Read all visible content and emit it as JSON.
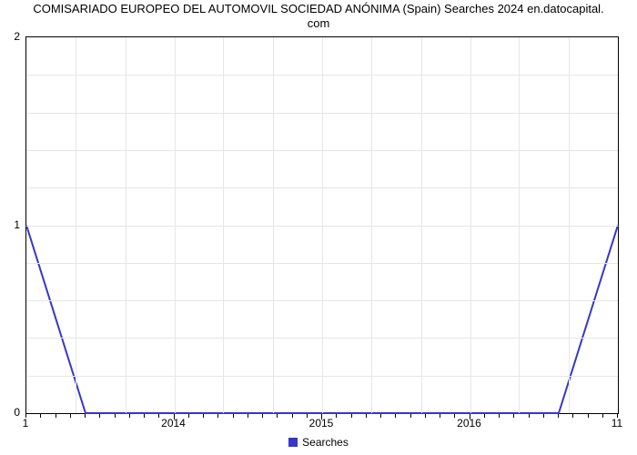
{
  "chart": {
    "type": "line",
    "title_line1": "COMISARIADO EUROPEO DEL AUTOMOVIL SOCIEDAD ANÓNIMA (Spain) Searches 2024 en.datocapital.",
    "title_line2": "com",
    "title_fontsize": 13,
    "title_color": "#000000",
    "background_color": "#ffffff",
    "plot_border_color": "#000000",
    "grid_color": "#e6e6e6",
    "y_axis": {
      "lim": [
        0,
        2
      ],
      "major_ticks": [
        0,
        1,
        2
      ],
      "label_fontsize": 12
    },
    "x_axis": {
      "domain_index": [
        1,
        11
      ],
      "corner_left_label": "1",
      "corner_right_label": "11",
      "major_tick_labels": [
        "2014",
        "2015",
        "2016"
      ],
      "major_tick_positions": [
        0.25,
        0.5,
        0.75
      ],
      "minor_tick_count": 40,
      "label_fontsize": 12
    },
    "series": {
      "name": "Searches",
      "color": "#3737c8",
      "line_width": 2,
      "points_y": [
        1.0,
        0.0,
        0.0,
        0.0,
        0.0,
        0.0,
        0.0,
        0.0,
        0.0,
        0.0,
        1.0
      ],
      "points_x": [
        1,
        2,
        3,
        4,
        5,
        6,
        7,
        8,
        9,
        10,
        11
      ]
    },
    "legend": {
      "label": "Searches",
      "swatch_color": "#3737c8",
      "text_color": "#000000",
      "fontsize": 12
    },
    "gridlines": {
      "horizontal_count": 10,
      "vertical_fractions": [
        0.083,
        0.167,
        0.25,
        0.333,
        0.417,
        0.5,
        0.583,
        0.667,
        0.75,
        0.833,
        0.917
      ]
    }
  }
}
